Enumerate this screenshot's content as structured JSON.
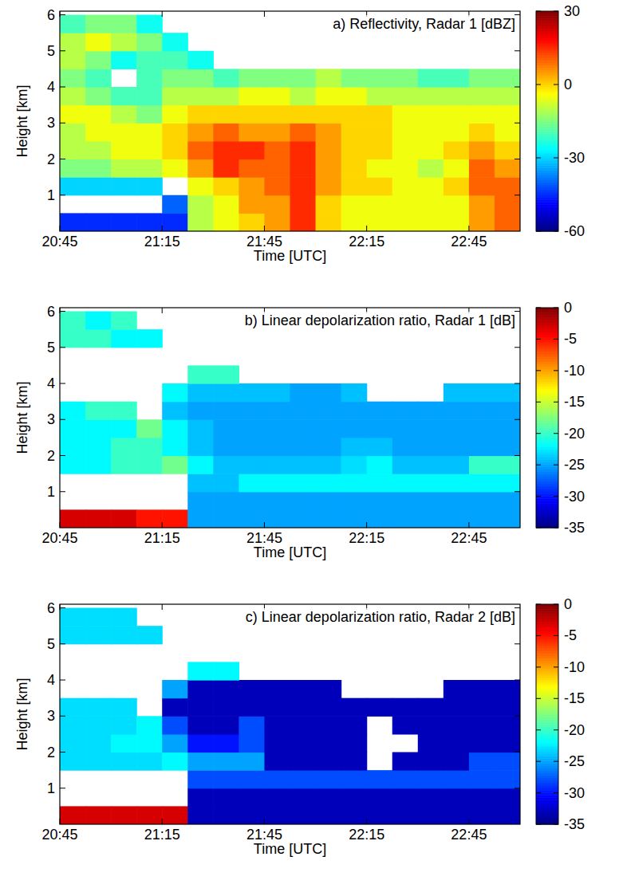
{
  "chart_data": [
    {
      "type": "heatmap",
      "title": "a) Reflectivity, Radar 1 [dBZ]",
      "x_label": "Time [UTC]",
      "y_label": "Height [km]",
      "xlim": [
        1245,
        1380
      ],
      "ylim": [
        0,
        6.1
      ],
      "xticks": [
        {
          "value": 1245,
          "label": "20:45"
        },
        {
          "value": 1275,
          "label": "21:15"
        },
        {
          "value": 1305,
          "label": "21:45"
        },
        {
          "value": 1335,
          "label": "22:15"
        },
        {
          "value": 1365,
          "label": "22:45"
        }
      ],
      "yticks": [
        1,
        2,
        3,
        4,
        5,
        6
      ],
      "x_edges": [
        1245,
        1252.5,
        1260,
        1267.5,
        1275,
        1282.5,
        1290,
        1297.5,
        1305,
        1312.5,
        1320,
        1327.5,
        1335,
        1342.5,
        1350,
        1357.5,
        1365,
        1372.5,
        1380
      ],
      "y_edges": [
        0,
        0.5,
        1,
        1.5,
        2,
        2.5,
        3,
        3.5,
        4,
        4.5,
        5,
        5.5,
        6
      ],
      "cells": [
        [
          -45,
          -45,
          -45,
          -45,
          -45,
          -10,
          -5,
          0,
          5,
          15,
          0,
          -5,
          -5,
          -5,
          -5,
          -5,
          5,
          10
        ],
        [
          null,
          null,
          null,
          null,
          -40,
          -10,
          -5,
          5,
          5,
          15,
          0,
          -5,
          -5,
          -5,
          -5,
          -5,
          5,
          10
        ],
        [
          -30,
          -30,
          -30,
          -30,
          null,
          -5,
          0,
          5,
          10,
          15,
          5,
          0,
          0,
          -5,
          -5,
          0,
          10,
          10
        ],
        [
          -15,
          -15,
          -10,
          -10,
          -5,
          5,
          15,
          10,
          10,
          15,
          5,
          0,
          -5,
          -5,
          -10,
          -5,
          10,
          5
        ],
        [
          -10,
          -10,
          -5,
          -5,
          0,
          10,
          15,
          15,
          10,
          15,
          5,
          0,
          0,
          -5,
          -5,
          0,
          5,
          0
        ],
        [
          -10,
          -5,
          -5,
          -5,
          0,
          5,
          10,
          5,
          5,
          10,
          5,
          0,
          0,
          -5,
          -5,
          -5,
          0,
          -5
        ],
        [
          -5,
          -5,
          -10,
          -15,
          -5,
          0,
          0,
          0,
          0,
          0,
          0,
          0,
          0,
          -5,
          -5,
          -5,
          -5,
          -5
        ],
        [
          -10,
          -15,
          -20,
          -20,
          -10,
          -10,
          -10,
          -5,
          -5,
          -10,
          -5,
          -5,
          -10,
          -10,
          -10,
          -10,
          -10,
          -10
        ],
        [
          -15,
          -20,
          null,
          -20,
          -15,
          -15,
          -20,
          -15,
          -15,
          -15,
          -10,
          -15,
          -15,
          -15,
          -20,
          -20,
          -15,
          -15
        ],
        [
          -10,
          -15,
          -25,
          -20,
          -20,
          -25,
          null,
          null,
          null,
          null,
          null,
          null,
          null,
          null,
          null,
          null,
          null,
          null
        ],
        [
          -10,
          -5,
          -10,
          -15,
          -25,
          null,
          null,
          null,
          null,
          null,
          null,
          null,
          null,
          null,
          null,
          null,
          null,
          null
        ],
        [
          -20,
          -15,
          -15,
          -25,
          null,
          null,
          null,
          null,
          null,
          null,
          null,
          null,
          null,
          null,
          null,
          null,
          null,
          null
        ]
      ],
      "colorbar": {
        "range": [
          -60,
          30
        ],
        "ticks": [
          -60,
          -30,
          0,
          30
        ]
      }
    },
    {
      "type": "heatmap",
      "title": "b) Linear depolarization ratio, Radar 1 [dB]",
      "x_label": "Time [UTC]",
      "y_label": "Height [km]",
      "xlim": [
        1245,
        1380
      ],
      "ylim": [
        0,
        6.1
      ],
      "xticks": [
        {
          "value": 1245,
          "label": "20:45"
        },
        {
          "value": 1275,
          "label": "21:15"
        },
        {
          "value": 1305,
          "label": "21:45"
        },
        {
          "value": 1335,
          "label": "22:15"
        },
        {
          "value": 1365,
          "label": "22:45"
        }
      ],
      "yticks": [
        1,
        2,
        3,
        4,
        5,
        6
      ],
      "x_edges": [
        1245,
        1252.5,
        1260,
        1267.5,
        1275,
        1282.5,
        1290,
        1297.5,
        1305,
        1312.5,
        1320,
        1327.5,
        1335,
        1342.5,
        1350,
        1357.5,
        1365,
        1372.5,
        1380
      ],
      "y_edges": [
        0,
        0.5,
        1,
        1.5,
        2,
        2.5,
        3,
        3.5,
        4,
        4.5,
        5,
        5.5,
        6
      ],
      "cells": [
        [
          -3,
          -3,
          -3,
          -5,
          -5,
          -25,
          -25,
          -25,
          -25,
          -25,
          -25,
          -25,
          -25,
          -25,
          -25,
          -25,
          -25,
          -25
        ],
        [
          null,
          null,
          null,
          null,
          null,
          -25,
          -25,
          -25,
          -25,
          -25,
          -25,
          -25,
          -25,
          -25,
          -25,
          -25,
          -25,
          -25
        ],
        [
          null,
          null,
          null,
          null,
          null,
          -24,
          -24,
          -22,
          -22,
          -22,
          -22,
          -22,
          -22,
          -22,
          -22,
          -22,
          -22,
          -22
        ],
        [
          -22,
          -22,
          -20,
          -20,
          -18,
          -22,
          -24,
          -24,
          -24,
          -24,
          -24,
          -23,
          -22,
          -24,
          -24,
          -24,
          -20,
          -20
        ],
        [
          -22,
          -22,
          -20,
          -20,
          -22,
          -24,
          -25,
          -25,
          -25,
          -25,
          -25,
          -24,
          -24,
          -25,
          -25,
          -25,
          -25,
          -25
        ],
        [
          -22,
          -22,
          -22,
          -18,
          -22,
          -24,
          -25,
          -25,
          -25,
          -25,
          -25,
          -25,
          -25,
          -25,
          -25,
          -25,
          -25,
          -25
        ],
        [
          -22,
          -20,
          -20,
          null,
          -24,
          -25,
          -25,
          -25,
          -25,
          -25,
          -25,
          -25,
          -25,
          -25,
          -25,
          -25,
          -25,
          -25
        ],
        [
          null,
          null,
          null,
          null,
          -22,
          -24,
          -24,
          -24,
          -24,
          -25,
          -25,
          -24,
          null,
          null,
          null,
          -24,
          -24,
          -24
        ],
        [
          null,
          null,
          null,
          null,
          null,
          -20,
          -20,
          null,
          null,
          null,
          null,
          null,
          null,
          null,
          null,
          null,
          null,
          null
        ],
        [
          null,
          null,
          null,
          null,
          null,
          null,
          null,
          null,
          null,
          null,
          null,
          null,
          null,
          null,
          null,
          null,
          null,
          null
        ],
        [
          -20,
          -20,
          -22,
          -22,
          null,
          null,
          null,
          null,
          null,
          null,
          null,
          null,
          null,
          null,
          null,
          null,
          null,
          null
        ],
        [
          -20,
          -22,
          -20,
          null,
          null,
          null,
          null,
          null,
          null,
          null,
          null,
          null,
          null,
          null,
          null,
          null,
          null,
          null
        ]
      ],
      "colorbar": {
        "range": [
          -35,
          0
        ],
        "ticks": [
          -35,
          -30,
          -25,
          -20,
          -15,
          -10,
          -5,
          0
        ]
      }
    },
    {
      "type": "heatmap",
      "title": "c) Linear depolarization ratio, Radar 2 [dB]",
      "x_label": "Time [UTC]",
      "y_label": "Height [km]",
      "xlim": [
        1245,
        1380
      ],
      "ylim": [
        0,
        6.1
      ],
      "xticks": [
        {
          "value": 1245,
          "label": "20:45"
        },
        {
          "value": 1275,
          "label": "21:15"
        },
        {
          "value": 1305,
          "label": "21:45"
        },
        {
          "value": 1335,
          "label": "22:15"
        },
        {
          "value": 1365,
          "label": "22:45"
        }
      ],
      "yticks": [
        1,
        2,
        3,
        4,
        5,
        6
      ],
      "x_edges": [
        1245,
        1252.5,
        1260,
        1267.5,
        1275,
        1282.5,
        1290,
        1297.5,
        1305,
        1312.5,
        1320,
        1327.5,
        1335,
        1342.5,
        1350,
        1357.5,
        1365,
        1372.5,
        1380
      ],
      "y_edges": [
        0,
        0.5,
        1,
        1.5,
        2,
        2.5,
        3,
        3.5,
        4,
        4.5,
        5,
        5.5,
        6
      ],
      "cells": [
        [
          -3,
          -3,
          -3,
          -3,
          -3,
          -33,
          -33,
          -33,
          -33,
          -33,
          -33,
          -33,
          -33,
          -33,
          -33,
          -33,
          -33,
          -33
        ],
        [
          null,
          null,
          null,
          null,
          null,
          -33,
          -33,
          -33,
          -33,
          -33,
          -33,
          -33,
          -33,
          -33,
          -33,
          -33,
          -33,
          -33
        ],
        [
          null,
          null,
          null,
          null,
          null,
          -28,
          -28,
          -28,
          -28,
          -28,
          -28,
          -28,
          -28,
          -28,
          -28,
          -28,
          -28,
          -28
        ],
        [
          -23,
          -23,
          -23,
          -23,
          -22,
          -25,
          -25,
          -25,
          -33,
          -33,
          -33,
          -33,
          null,
          -33,
          -33,
          -33,
          -28,
          -28
        ],
        [
          -23,
          -23,
          -22,
          -22,
          -25,
          -30,
          -30,
          -28,
          -33,
          -33,
          -33,
          -33,
          null,
          null,
          -33,
          -33,
          -33,
          -33
        ],
        [
          -23,
          -23,
          -23,
          -22,
          -28,
          -33,
          -33,
          -28,
          -33,
          -33,
          -33,
          -33,
          null,
          -33,
          -33,
          -33,
          -33,
          -33
        ],
        [
          -23,
          -23,
          -23,
          null,
          -33,
          -33,
          -33,
          -33,
          -33,
          -33,
          -33,
          -33,
          -33,
          -33,
          -33,
          -33,
          -33,
          -33
        ],
        [
          null,
          null,
          null,
          null,
          -25,
          -33,
          -33,
          -33,
          -33,
          -33,
          -33,
          null,
          null,
          null,
          null,
          -33,
          -33,
          -33
        ],
        [
          null,
          null,
          null,
          null,
          null,
          -22,
          -22,
          null,
          null,
          null,
          null,
          null,
          null,
          null,
          null,
          null,
          null,
          null
        ],
        [
          null,
          null,
          null,
          null,
          null,
          null,
          null,
          null,
          null,
          null,
          null,
          null,
          null,
          null,
          null,
          null,
          null,
          null
        ],
        [
          -23,
          -23,
          -23,
          -23,
          null,
          null,
          null,
          null,
          null,
          null,
          null,
          null,
          null,
          null,
          null,
          null,
          null,
          null
        ],
        [
          -23,
          -23,
          -23,
          null,
          null,
          null,
          null,
          null,
          null,
          null,
          null,
          null,
          null,
          null,
          null,
          null,
          null,
          null
        ]
      ],
      "colorbar": {
        "range": [
          -35,
          0
        ],
        "ticks": [
          -35,
          -30,
          -25,
          -20,
          -15,
          -10,
          -5,
          0
        ]
      }
    }
  ]
}
